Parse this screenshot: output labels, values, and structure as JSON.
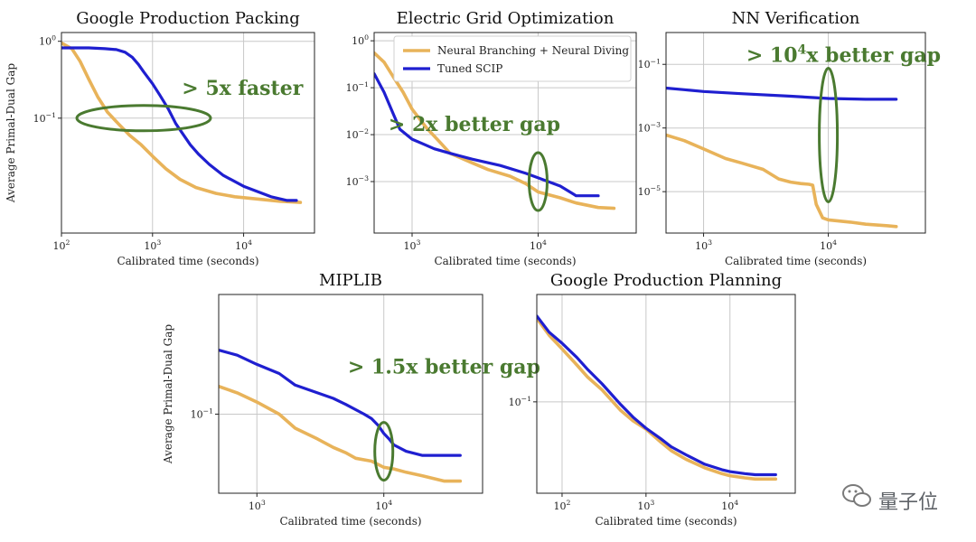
{
  "figure": {
    "legend": {
      "neural": "Neural Branching + Neural Diving",
      "scip": "Tuned SCIP"
    },
    "colors": {
      "neural": "#e8b35a",
      "scip": "#1f1fd0",
      "annotation": "#4a7a30",
      "grid": "#c8c8c8",
      "axis": "#222222"
    },
    "watermark": "量子位"
  },
  "chart_data": [
    {
      "id": "packing",
      "type": "line",
      "title": "Google Production Packing",
      "xlabel": "Calibrated time (seconds)",
      "ylabel": "Average Primal-Dual Gap",
      "xscale": "log",
      "yscale": "log",
      "xlim": [
        100,
        60000
      ],
      "ylim": [
        0.0032,
        1.3
      ],
      "xticks": [
        100,
        1000,
        10000
      ],
      "xtick_labels": [
        "10^2",
        "10^3",
        "10^4"
      ],
      "yticks": [
        0.1,
        1.0
      ],
      "ytick_labels": [
        "10^-1",
        "10^0"
      ],
      "annotation": {
        "text": "> 5x faster",
        "x": 2100,
        "y": 0.2,
        "marker": "ellipse-h",
        "ex": 800,
        "ey": 0.1
      },
      "series": [
        {
          "name": "Neural Branching + Neural Diving",
          "key": "neural",
          "x": [
            100,
            130,
            160,
            200,
            250,
            320,
            420,
            560,
            750,
            1000,
            1400,
            2000,
            3000,
            5000,
            8000,
            15000,
            25000,
            42000
          ],
          "y": [
            0.95,
            0.8,
            0.55,
            0.32,
            0.19,
            0.12,
            0.085,
            0.06,
            0.045,
            0.032,
            0.022,
            0.016,
            0.0125,
            0.0105,
            0.0095,
            0.0088,
            0.0083,
            0.008
          ]
        },
        {
          "name": "Tuned SCIP",
          "key": "scip",
          "x": [
            100,
            200,
            300,
            400,
            500,
            600,
            700,
            800,
            1000,
            1200,
            1500,
            1800,
            2200,
            2600,
            3200,
            4200,
            6000,
            10000,
            20000,
            30000,
            38000
          ],
          "y": [
            0.82,
            0.82,
            0.8,
            0.78,
            0.72,
            0.62,
            0.5,
            0.4,
            0.28,
            0.2,
            0.13,
            0.085,
            0.06,
            0.045,
            0.034,
            0.025,
            0.018,
            0.013,
            0.0095,
            0.0085,
            0.0085
          ]
        }
      ]
    },
    {
      "id": "grid",
      "type": "line",
      "title": "Electric Grid Optimization",
      "xlabel": "Calibrated time (seconds)",
      "ylabel": "",
      "xscale": "log",
      "yscale": "log",
      "xlim": [
        500,
        60000
      ],
      "ylim": [
        8e-05,
        1.5
      ],
      "xticks": [
        1000,
        10000
      ],
      "xtick_labels": [
        "10^3",
        "10^4"
      ],
      "yticks": [
        0.001,
        0.01,
        0.1,
        1.0
      ],
      "ytick_labels": [
        "10^-3",
        "10^-2",
        "10^-1",
        "10^0"
      ],
      "annotation": {
        "text": "> 2x better gap",
        "x": 650,
        "y": 0.012,
        "marker": "ellipse-v",
        "ex": 10000,
        "ey": 0.001
      },
      "series": [
        {
          "name": "Neural Branching + Neural Diving",
          "key": "neural",
          "x": [
            500,
            600,
            700,
            850,
            1000,
            1300,
            1700,
            2000,
            3000,
            4000,
            6000,
            8000,
            10000,
            15000,
            20000,
            30000,
            40000
          ],
          "y": [
            0.55,
            0.35,
            0.18,
            0.08,
            0.035,
            0.014,
            0.0065,
            0.004,
            0.0025,
            0.0018,
            0.0013,
            0.0009,
            0.0006,
            0.00045,
            0.00035,
            0.00028,
            0.00027
          ]
        },
        {
          "name": "Tuned SCIP",
          "key": "scip",
          "x": [
            500,
            600,
            700,
            800,
            1000,
            1200,
            1500,
            2000,
            3000,
            5000,
            8000,
            10000,
            15000,
            20000,
            30000
          ],
          "y": [
            0.2,
            0.08,
            0.03,
            0.013,
            0.008,
            0.0065,
            0.005,
            0.004,
            0.003,
            0.0022,
            0.0015,
            0.0012,
            0.0008,
            0.0005,
            0.0005
          ]
        }
      ]
    },
    {
      "id": "nnv",
      "type": "line",
      "title": "NN Verification",
      "xlabel": "Calibrated time (seconds)",
      "ylabel": "",
      "xscale": "log",
      "yscale": "log",
      "xlim": [
        500,
        60000
      ],
      "ylim": [
        5e-07,
        1.0
      ],
      "xticks": [
        1000,
        10000
      ],
      "xtick_labels": [
        "10^3",
        "10^4"
      ],
      "yticks": [
        1e-05,
        0.001,
        0.1
      ],
      "ytick_labels": [
        "10^-5",
        "10^-3",
        "10^-1"
      ],
      "annotation": {
        "text": "> 10^4x better gap",
        "x": 2200,
        "y": 0.12,
        "marker": "ellipse-v",
        "ex": 10000,
        "ey": 0.0006
      },
      "series": [
        {
          "name": "Neural Branching + Neural Diving",
          "key": "neural",
          "x": [
            500,
            700,
            1000,
            1500,
            2000,
            3000,
            4000,
            5000,
            6000,
            7000,
            7500,
            8000,
            9000,
            10000,
            15000,
            20000,
            30000,
            35000
          ],
          "y": [
            0.0006,
            0.0004,
            0.00022,
            0.00011,
            8e-05,
            5e-05,
            2.5e-05,
            2e-05,
            1.8e-05,
            1.7e-05,
            1.6e-05,
            4e-06,
            1.5e-06,
            1.3e-06,
            1.1e-06,
            9.5e-07,
            8.5e-07,
            8e-07
          ]
        },
        {
          "name": "Tuned SCIP",
          "key": "scip",
          "x": [
            500,
            700,
            1000,
            2000,
            5000,
            10000,
            20000,
            35000
          ],
          "y": [
            0.018,
            0.016,
            0.014,
            0.012,
            0.01,
            0.0085,
            0.008,
            0.008
          ]
        }
      ]
    },
    {
      "id": "miplib",
      "type": "line",
      "title": "MIPLIB",
      "xlabel": "Calibrated time (seconds)",
      "ylabel": "Average Primal-Dual Gap",
      "xscale": "log",
      "yscale": "log",
      "xlim": [
        500,
        60000
      ],
      "ylim": [
        0.04,
        0.4
      ],
      "xticks": [
        1000,
        10000
      ],
      "xtick_labels": [
        "10^3",
        "10^4"
      ],
      "yticks": [
        0.1
      ],
      "ytick_labels": [
        "10^-1"
      ],
      "annotation": {
        "text": "> 1.5x better gap",
        "x": 5200,
        "y": 0.16,
        "marker": "ellipse-v",
        "ex": 10000,
        "ey": 0.065
      },
      "series": [
        {
          "name": "Neural Branching + Neural Diving",
          "key": "neural",
          "x": [
            500,
            700,
            1000,
            1500,
            2000,
            3000,
            4000,
            5000,
            6000,
            8000,
            10000,
            12000,
            15000,
            20000,
            30000,
            40000
          ],
          "y": [
            0.138,
            0.128,
            0.115,
            0.1,
            0.085,
            0.075,
            0.068,
            0.064,
            0.06,
            0.058,
            0.054,
            0.053,
            0.051,
            0.049,
            0.046,
            0.046
          ]
        },
        {
          "name": "Tuned SCIP",
          "key": "scip",
          "x": [
            500,
            700,
            1000,
            1500,
            2000,
            3000,
            4000,
            5000,
            7000,
            8000,
            9000,
            10000,
            11000,
            12000,
            15000,
            20000,
            30000,
            40000
          ],
          "y": [
            0.21,
            0.198,
            0.178,
            0.16,
            0.14,
            0.128,
            0.12,
            0.112,
            0.1,
            0.095,
            0.088,
            0.08,
            0.075,
            0.07,
            0.065,
            0.062,
            0.062,
            0.062
          ]
        }
      ]
    },
    {
      "id": "planning",
      "type": "line",
      "title": "Google Production Planning",
      "xlabel": "Calibrated time (seconds)",
      "ylabel": "",
      "xscale": "log",
      "yscale": "log",
      "xlim": [
        50,
        60000
      ],
      "ylim": [
        0.018,
        0.75
      ],
      "xticks": [
        100,
        1000,
        10000
      ],
      "xtick_labels": [
        "10^2",
        "10^3",
        "10^4"
      ],
      "yticks": [
        0.1
      ],
      "ytick_labels": [
        "10^-1"
      ],
      "annotation": null,
      "series": [
        {
          "name": "Neural Branching + Neural Diving",
          "key": "neural",
          "x": [
            50,
            70,
            100,
            150,
            200,
            300,
            500,
            700,
            1000,
            1500,
            2000,
            3000,
            5000,
            8000,
            10000,
            15000,
            20000,
            35000
          ],
          "y": [
            0.48,
            0.35,
            0.27,
            0.2,
            0.16,
            0.125,
            0.085,
            0.07,
            0.06,
            0.047,
            0.04,
            0.034,
            0.029,
            0.026,
            0.025,
            0.024,
            0.0235,
            0.0235
          ]
        },
        {
          "name": "Tuned SCIP",
          "key": "scip",
          "x": [
            50,
            70,
            100,
            150,
            200,
            300,
            500,
            700,
            1000,
            1500,
            2000,
            3000,
            5000,
            8000,
            10000,
            15000,
            20000,
            35000
          ],
          "y": [
            0.5,
            0.37,
            0.3,
            0.23,
            0.185,
            0.14,
            0.095,
            0.075,
            0.061,
            0.05,
            0.043,
            0.037,
            0.031,
            0.028,
            0.027,
            0.026,
            0.0255,
            0.0255
          ]
        }
      ]
    }
  ]
}
